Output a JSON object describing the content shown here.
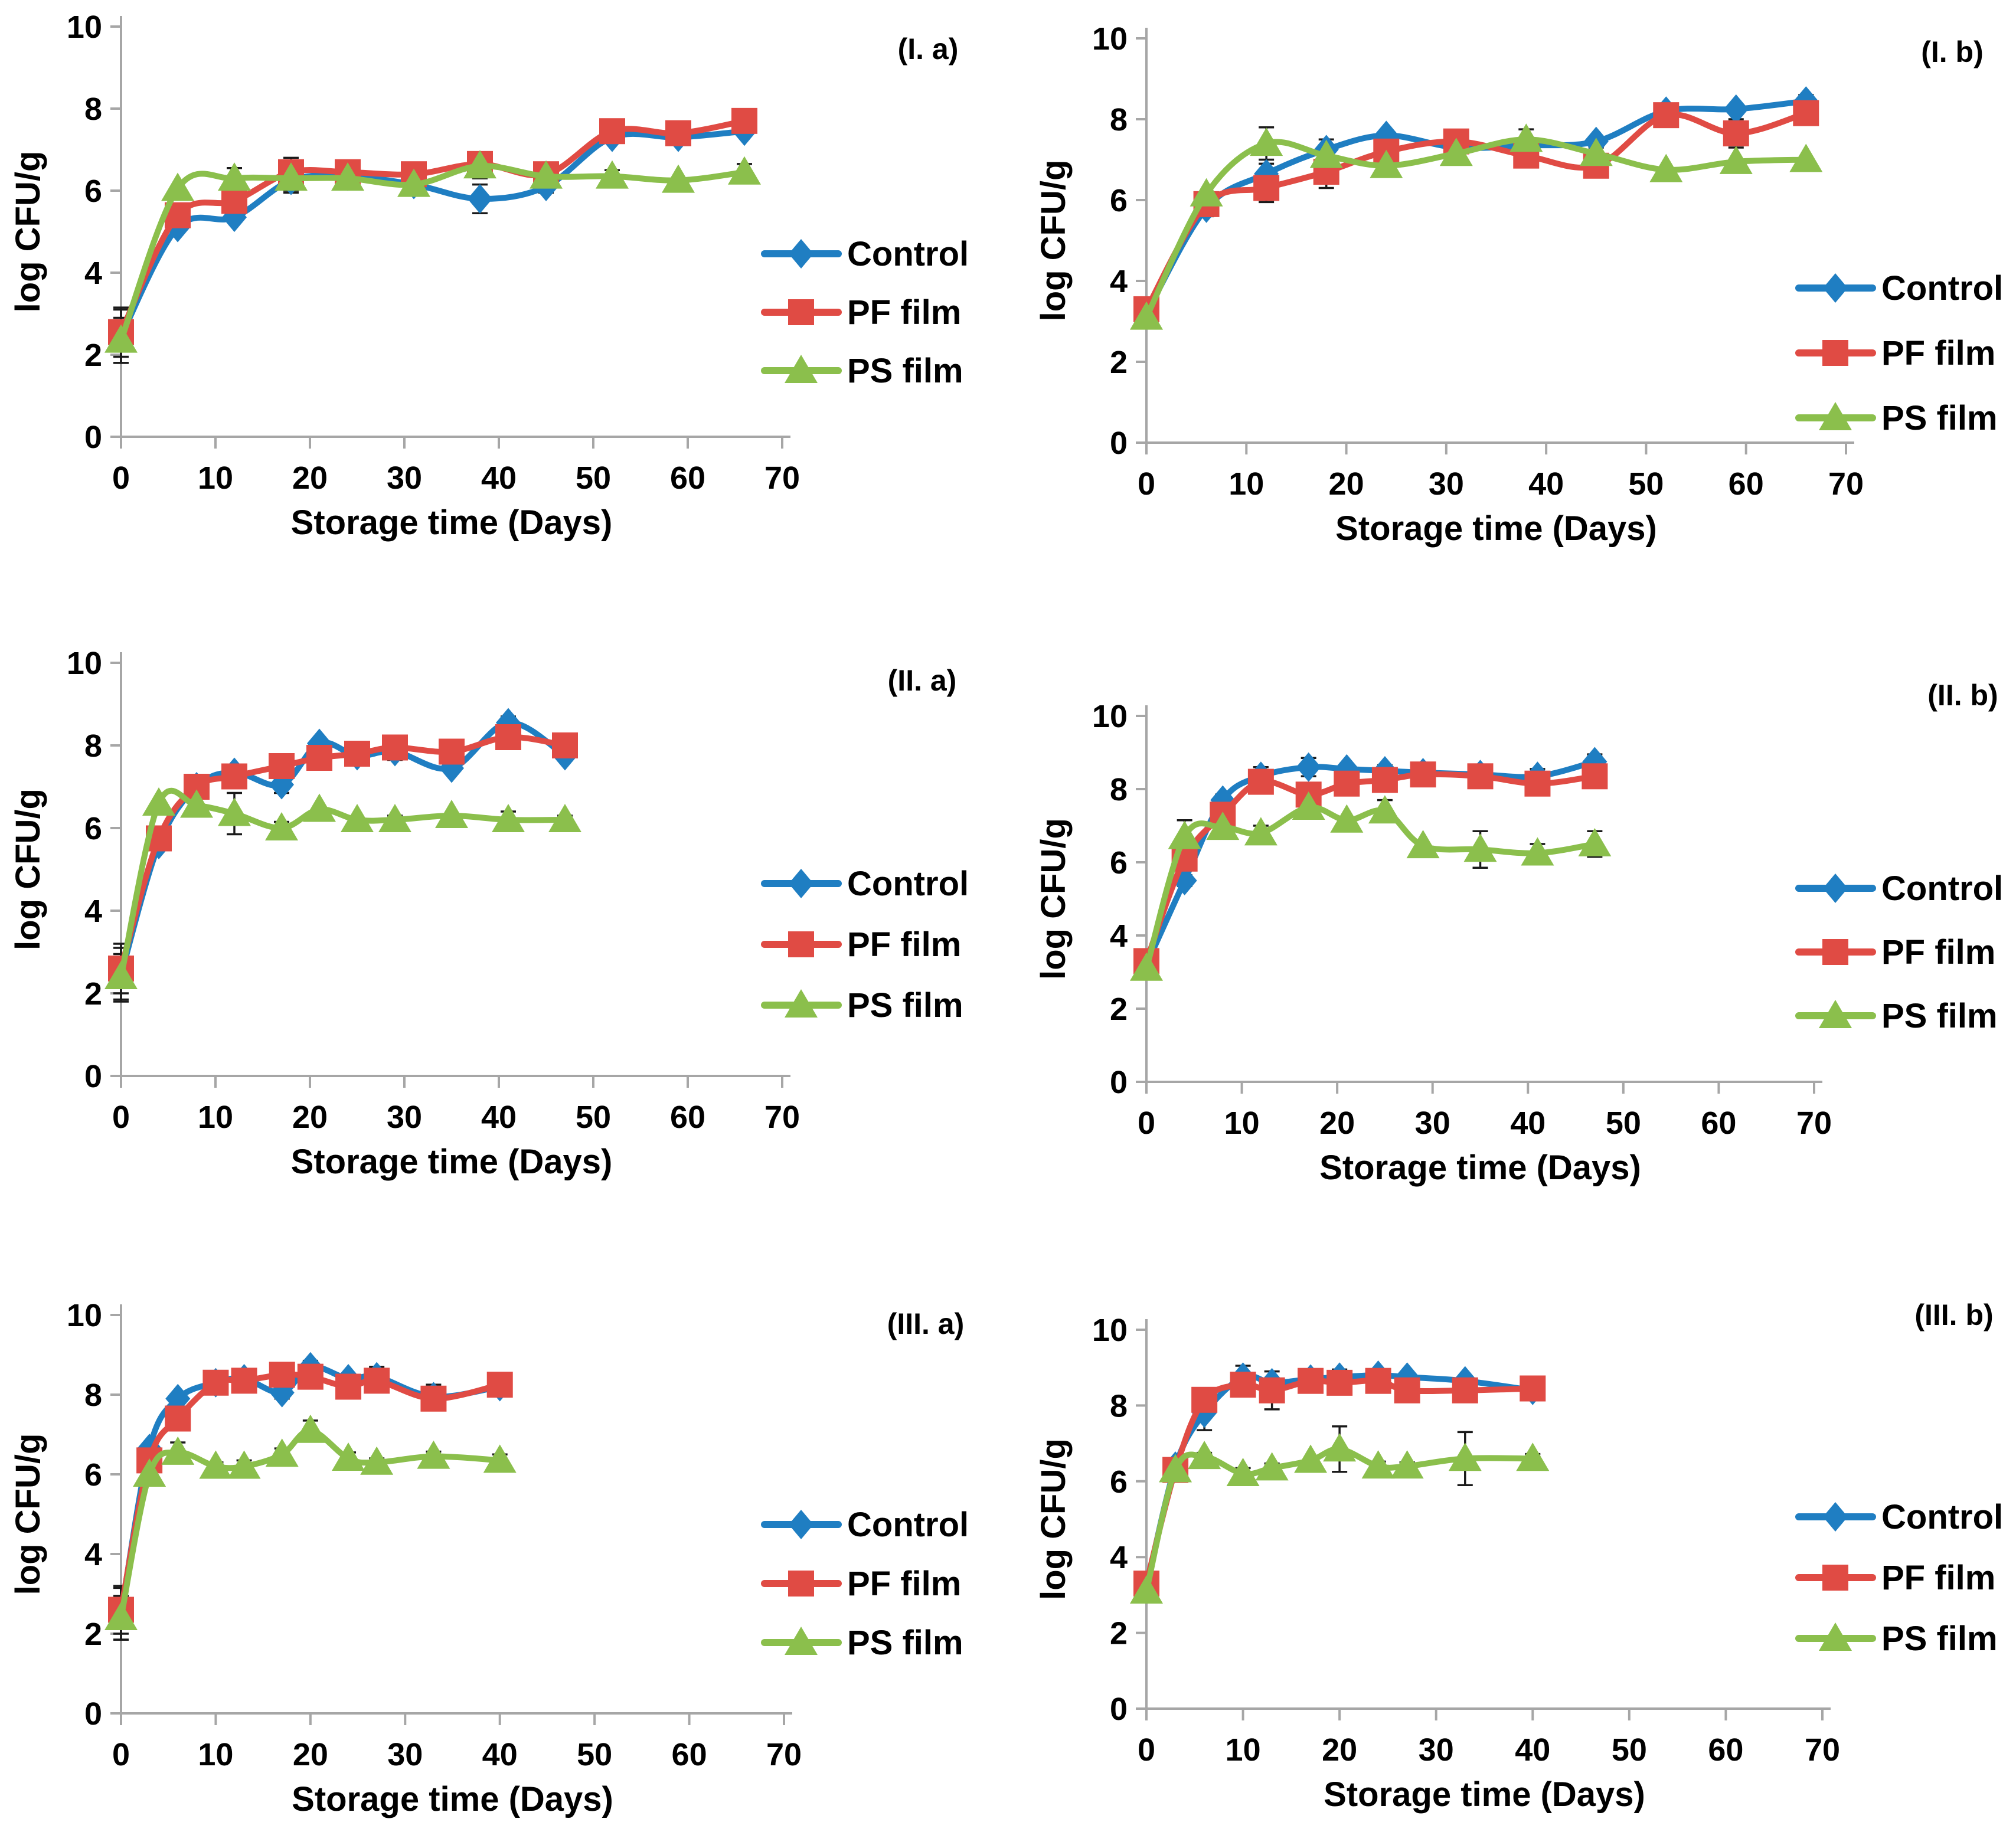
{
  "figure": {
    "x_axis_title": "Storage time (Days)",
    "y_axis_title": "log CFU/g",
    "legend": [
      "Control",
      "PF film",
      "PS film"
    ],
    "colors": {
      "control": "#1F7EC2",
      "pf_film": "#E04B44",
      "ps_film": "#8BBF4C",
      "axis": "#A6A6A6",
      "error_bar": "#1A1A1A",
      "text": "#000000"
    }
  },
  "chart_data": [
    {
      "type": "line",
      "panel_label": "(I. a)",
      "xlabel": "Storage time (Days)",
      "ylabel": "log CFU/g",
      "xlim": [
        0,
        70
      ],
      "ylim": [
        0,
        10
      ],
      "x_ticks": [
        0,
        10,
        20,
        30,
        40,
        50,
        60,
        70
      ],
      "y_ticks": [
        0,
        2,
        4,
        6,
        8,
        10
      ],
      "grid": false,
      "legend_position": "right",
      "x": [
        0,
        6,
        12,
        18,
        24,
        31,
        38,
        45,
        52,
        59,
        66
      ],
      "series": [
        {
          "name": "Control",
          "marker": "diamond",
          "color": "#1F7EC2",
          "values": [
            2.45,
            5.1,
            5.35,
            6.25,
            6.35,
            6.15,
            5.8,
            6.1,
            7.3,
            7.3,
            7.45
          ],
          "errors": [
            0.65,
            0,
            0,
            0.3,
            0,
            0,
            0.35,
            0.15,
            0,
            0,
            0
          ]
        },
        {
          "name": "PF film",
          "marker": "square",
          "color": "#E04B44",
          "values": [
            2.55,
            5.4,
            5.75,
            6.45,
            6.45,
            6.4,
            6.65,
            6.4,
            7.45,
            7.4,
            7.7
          ],
          "errors": [
            0.6,
            0,
            0,
            0.35,
            0,
            0,
            0.2,
            0,
            0,
            0,
            0
          ]
        },
        {
          "name": "PS film",
          "marker": "triangle",
          "color": "#8BBF4C",
          "values": [
            2.35,
            6.05,
            6.3,
            6.3,
            6.3,
            6.15,
            6.6,
            6.35,
            6.35,
            6.25,
            6.45
          ],
          "errors": [
            0.55,
            0,
            0.25,
            0.3,
            0,
            0,
            0.3,
            0.2,
            0.15,
            0,
            0.2
          ]
        }
      ]
    },
    {
      "type": "line",
      "panel_label": "(I. b)",
      "xlabel": "Storage time (Days)",
      "ylabel": "log CFU/g",
      "xlim": [
        0,
        70
      ],
      "ylim": [
        0,
        10
      ],
      "x_ticks": [
        0,
        10,
        20,
        30,
        40,
        50,
        60,
        70
      ],
      "y_ticks": [
        0,
        2,
        4,
        6,
        8,
        10
      ],
      "grid": false,
      "legend_position": "right",
      "x": [
        0,
        6,
        12,
        18,
        24,
        31,
        38,
        45,
        52,
        59,
        66
      ],
      "series": [
        {
          "name": "Control",
          "marker": "diamond",
          "color": "#1F7EC2",
          "values": [
            3.2,
            5.8,
            6.65,
            7.25,
            7.6,
            7.3,
            7.35,
            7.45,
            8.2,
            8.25,
            8.45
          ],
          "errors": [
            0.15,
            0.2,
            0.25,
            0.25,
            0,
            0,
            0,
            0,
            0,
            0,
            0.15
          ]
        },
        {
          "name": "PF film",
          "marker": "square",
          "color": "#E04B44",
          "values": [
            3.3,
            5.9,
            6.3,
            6.7,
            7.2,
            7.45,
            7.1,
            6.85,
            8.1,
            7.65,
            8.15
          ],
          "errors": [
            0.1,
            0,
            0.35,
            0.4,
            0,
            0,
            0,
            0,
            0,
            0.35,
            0
          ]
        },
        {
          "name": "PS film",
          "marker": "triangle",
          "color": "#8BBF4C",
          "values": [
            3.1,
            6.15,
            7.4,
            7.1,
            6.85,
            7.15,
            7.5,
            7.15,
            6.75,
            6.95,
            7.0
          ],
          "errors": [
            0.1,
            0,
            0.4,
            0,
            0,
            0,
            0.25,
            0.15,
            0,
            0,
            0
          ]
        }
      ]
    },
    {
      "type": "line",
      "panel_label": "(II. a)",
      "xlabel": "Storage time (Days)",
      "ylabel": "log CFU/g",
      "xlim": [
        0,
        70
      ],
      "ylim": [
        0,
        10
      ],
      "x_ticks": [
        0,
        10,
        20,
        30,
        40,
        50,
        60,
        70
      ],
      "y_ticks": [
        0,
        2,
        4,
        6,
        8,
        10
      ],
      "grid": false,
      "legend_position": "right",
      "x": [
        0,
        4,
        8,
        12,
        17,
        21,
        25,
        29,
        35,
        41,
        47
      ],
      "series": [
        {
          "name": "Control",
          "marker": "diamond",
          "color": "#1F7EC2",
          "values": [
            2.45,
            5.6,
            7.0,
            7.35,
            7.05,
            8.05,
            7.75,
            7.85,
            7.45,
            8.55,
            7.75
          ],
          "errors": [
            0.65,
            0,
            0,
            0,
            0.2,
            0,
            0,
            0.2,
            0.1,
            0.15,
            0
          ]
        },
        {
          "name": "PF film",
          "marker": "square",
          "color": "#E04B44",
          "values": [
            2.6,
            5.75,
            7.0,
            7.25,
            7.5,
            7.7,
            7.8,
            7.95,
            7.85,
            8.2,
            8.0
          ],
          "errors": [
            0.6,
            0,
            0,
            0,
            0,
            0,
            0,
            0.25,
            0,
            0,
            0
          ]
        },
        {
          "name": "PS film",
          "marker": "triangle",
          "color": "#8BBF4C",
          "values": [
            2.4,
            6.6,
            6.55,
            6.35,
            6.0,
            6.45,
            6.2,
            6.2,
            6.3,
            6.2,
            6.2
          ],
          "errors": [
            0.55,
            0,
            0,
            0.5,
            0.15,
            0,
            0,
            0.1,
            0,
            0.2,
            0.1
          ]
        }
      ]
    },
    {
      "type": "line",
      "panel_label": "(II. b)",
      "xlabel": "Storage time (Days)",
      "ylabel": "log CFU/g",
      "xlim": [
        0,
        70
      ],
      "ylim": [
        0,
        10
      ],
      "x_ticks": [
        0,
        10,
        20,
        30,
        40,
        50,
        60,
        70
      ],
      "y_ticks": [
        0,
        2,
        4,
        6,
        8,
        10
      ],
      "grid": false,
      "legend_position": "right",
      "x": [
        0,
        4,
        8,
        12,
        17,
        21,
        25,
        29,
        35,
        41,
        47
      ],
      "series": [
        {
          "name": "Control",
          "marker": "diamond",
          "color": "#1F7EC2",
          "values": [
            3.2,
            5.5,
            7.7,
            8.35,
            8.6,
            8.55,
            8.5,
            8.45,
            8.4,
            8.35,
            8.75
          ],
          "errors": [
            0.15,
            0.15,
            0.15,
            0.25,
            0.25,
            0,
            0.15,
            0.2,
            0,
            0.2,
            0.2
          ]
        },
        {
          "name": "PF film",
          "marker": "square",
          "color": "#E04B44",
          "values": [
            3.3,
            6.1,
            7.3,
            8.2,
            7.85,
            8.15,
            8.25,
            8.4,
            8.35,
            8.15,
            8.35
          ],
          "errors": [
            0.1,
            0,
            0,
            0.3,
            0.2,
            0,
            0.2,
            0,
            0,
            0,
            0
          ]
        },
        {
          "name": "PS film",
          "marker": "triangle",
          "color": "#8BBF4C",
          "values": [
            3.1,
            6.7,
            6.95,
            6.8,
            7.5,
            7.15,
            7.4,
            6.45,
            6.35,
            6.25,
            6.5
          ],
          "errors": [
            0.1,
            0.45,
            0,
            0.2,
            0,
            0,
            0.3,
            0,
            0.5,
            0.25,
            0.35
          ]
        }
      ]
    },
    {
      "type": "line",
      "panel_label": "(III. a)",
      "xlabel": "Storage time (Days)",
      "ylabel": "log CFU/g",
      "xlim": [
        0,
        70
      ],
      "ylim": [
        0,
        10
      ],
      "x_ticks": [
        0,
        10,
        20,
        30,
        40,
        50,
        60,
        70
      ],
      "y_ticks": [
        0,
        2,
        4,
        6,
        8,
        10
      ],
      "grid": false,
      "legend_position": "right",
      "x": [
        0,
        3,
        6,
        10,
        13,
        17,
        20,
        24,
        27,
        33,
        40
      ],
      "series": [
        {
          "name": "Control",
          "marker": "diamond",
          "color": "#1F7EC2",
          "values": [
            2.5,
            6.65,
            7.9,
            8.3,
            8.4,
            8.05,
            8.7,
            8.4,
            8.45,
            7.95,
            8.2
          ],
          "errors": [
            0.65,
            0,
            0,
            0,
            0,
            0.15,
            0.15,
            0,
            0.25,
            0.3,
            0.2
          ]
        },
        {
          "name": "PF film",
          "marker": "square",
          "color": "#E04B44",
          "values": [
            2.6,
            6.35,
            7.4,
            8.3,
            8.35,
            8.5,
            8.45,
            8.2,
            8.35,
            7.9,
            8.25
          ],
          "errors": [
            0.6,
            0,
            0.3,
            0,
            0,
            0,
            0,
            0,
            0.15,
            0,
            0
          ]
        },
        {
          "name": "PS film",
          "marker": "triangle",
          "color": "#8BBF4C",
          "values": [
            2.4,
            6.0,
            6.55,
            6.2,
            6.2,
            6.5,
            7.1,
            6.4,
            6.3,
            6.45,
            6.35
          ],
          "errors": [
            0.55,
            0.1,
            0.25,
            0.1,
            0.15,
            0.15,
            0.25,
            0.15,
            0.1,
            0.12,
            0.15
          ]
        }
      ]
    },
    {
      "type": "line",
      "panel_label": "(III. b)",
      "xlabel": "Storage time (Days)",
      "ylabel": "log CFU/g",
      "xlim": [
        0,
        70
      ],
      "ylim": [
        0,
        10
      ],
      "x_ticks": [
        0,
        10,
        20,
        30,
        40,
        50,
        60,
        70
      ],
      "y_ticks": [
        0,
        2,
        4,
        6,
        8,
        10
      ],
      "grid": false,
      "legend_position": "right",
      "x": [
        0,
        3,
        6,
        10,
        13,
        17,
        20,
        24,
        27,
        33,
        40
      ],
      "series": [
        {
          "name": "Control",
          "marker": "diamond",
          "color": "#1F7EC2",
          "values": [
            3.2,
            6.4,
            7.8,
            8.75,
            8.6,
            8.7,
            8.75,
            8.8,
            8.75,
            8.65,
            8.4
          ],
          "errors": [
            0.3,
            0,
            0.45,
            0.3,
            0,
            0,
            0.2,
            0.15,
            0,
            0,
            0.2
          ]
        },
        {
          "name": "PF film",
          "marker": "square",
          "color": "#E04B44",
          "values": [
            3.3,
            6.3,
            8.15,
            8.55,
            8.4,
            8.65,
            8.6,
            8.65,
            8.4,
            8.4,
            8.45
          ],
          "errors": [
            0.25,
            0,
            0,
            0,
            0.5,
            0,
            0,
            0,
            0,
            0,
            0
          ]
        },
        {
          "name": "PS film",
          "marker": "triangle",
          "color": "#8BBF4C",
          "values": [
            3.1,
            6.3,
            6.65,
            6.2,
            6.35,
            6.55,
            6.85,
            6.4,
            6.4,
            6.6,
            6.6
          ],
          "errors": [
            0.2,
            0.15,
            0.1,
            0.15,
            0.12,
            0,
            0.6,
            0.12,
            0.1,
            0.7,
            0.12
          ]
        }
      ]
    }
  ]
}
